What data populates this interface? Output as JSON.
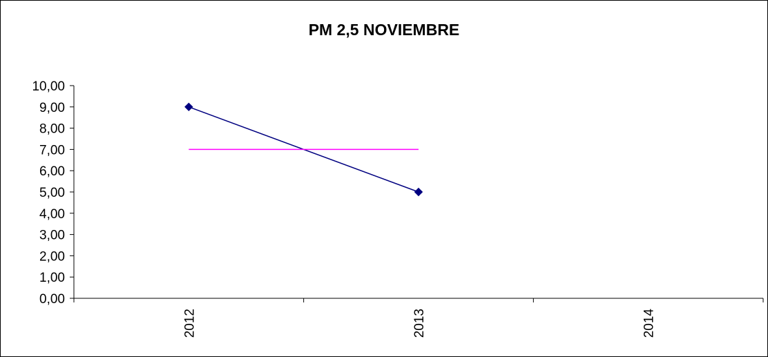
{
  "chart_data": {
    "type": "line",
    "title": "PM 2,5 NOVIEMBRE",
    "xlabel": "",
    "ylabel": "",
    "categories": [
      "2012",
      "2013",
      "2014"
    ],
    "ylim": [
      0,
      10
    ],
    "yticks": [
      "0,00",
      "1,00",
      "2,00",
      "3,00",
      "4,00",
      "5,00",
      "6,00",
      "7,00",
      "8,00",
      "9,00",
      "10,00"
    ],
    "series": [
      {
        "values": [
          9,
          5,
          null
        ],
        "color": "#000080",
        "marker": "diamond"
      },
      {
        "values": [
          7,
          7,
          null
        ],
        "color": "#ff00ff",
        "marker": "none"
      }
    ],
    "grid": false,
    "legend": "none"
  }
}
